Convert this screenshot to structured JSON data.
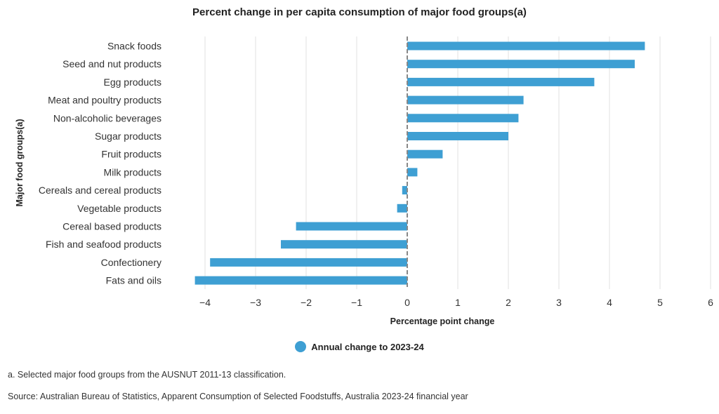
{
  "chart_data": {
    "type": "bar",
    "orientation": "horizontal",
    "title": "Percent change in per capita consumption of major food groups(a)",
    "xlabel": "Percentage point change",
    "ylabel": "Major food groups(a)",
    "xlim": [
      -4.7,
      6
    ],
    "xticks": [
      -4,
      -3,
      -2,
      -1,
      0,
      1,
      2,
      3,
      4,
      5,
      6
    ],
    "xtick_labels": [
      "−4",
      "−3",
      "−2",
      "−1",
      "0",
      "1",
      "2",
      "3",
      "4",
      "5",
      "6"
    ],
    "grid": true,
    "legend_position": "bottom-center",
    "categories": [
      "Snack foods",
      "Seed and nut products",
      "Egg products",
      "Meat and poultry products",
      "Non-alcoholic beverages",
      "Sugar products",
      "Fruit products",
      "Milk products",
      "Cereals and cereal products",
      "Vegetable products",
      "Cereal based products",
      "Fish and seafood products",
      "Confectionery",
      "Fats and oils"
    ],
    "series": [
      {
        "name": "Annual change to 2023-24",
        "color": "#3e9fd3",
        "values": [
          4.7,
          4.5,
          3.7,
          2.3,
          2.2,
          2.0,
          0.7,
          0.2,
          -0.1,
          -0.2,
          -2.2,
          -2.5,
          -3.9,
          -4.2
        ]
      }
    ]
  },
  "footnotes": {
    "note_a": "a. Selected major food groups from the AUSNUT 2011-13 classification.",
    "source": "Source: Australian Bureau of Statistics, Apparent Consumption of Selected Foodstuffs, Australia 2023-24 financial year"
  }
}
